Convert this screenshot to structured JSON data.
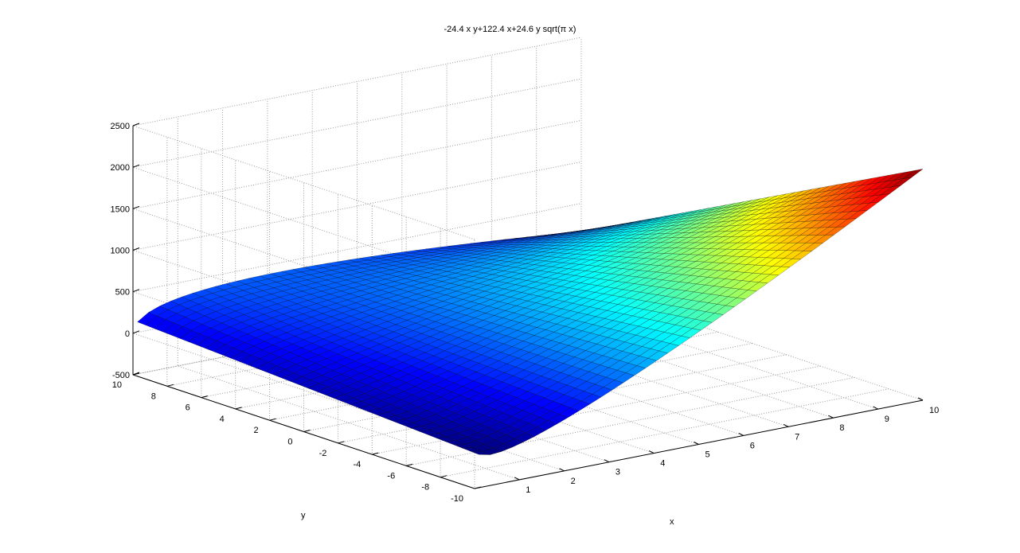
{
  "chart_data": {
    "type": "surface",
    "title": "-24.4 x y+122.4 x+24.6 y sqrt(π x)",
    "xlabel": "x",
    "ylabel": "y",
    "zlabel": "",
    "function": "-24.4 x y+122.4 x+24.6 y sqrt(π x)",
    "xlim": [
      0,
      10
    ],
    "ylim": [
      -10,
      10
    ],
    "zlim": [
      -500,
      2500
    ],
    "x_ticks": [
      1,
      2,
      3,
      4,
      5,
      6,
      7,
      8,
      9,
      10
    ],
    "y_ticks": [
      -10,
      -8,
      -6,
      -4,
      -2,
      0,
      2,
      4,
      6,
      8,
      10
    ],
    "z_ticks": [
      -500,
      0,
      500,
      1000,
      1500,
      2000,
      2500
    ],
    "grid": true,
    "colormap": "jet",
    "view": "3d"
  }
}
